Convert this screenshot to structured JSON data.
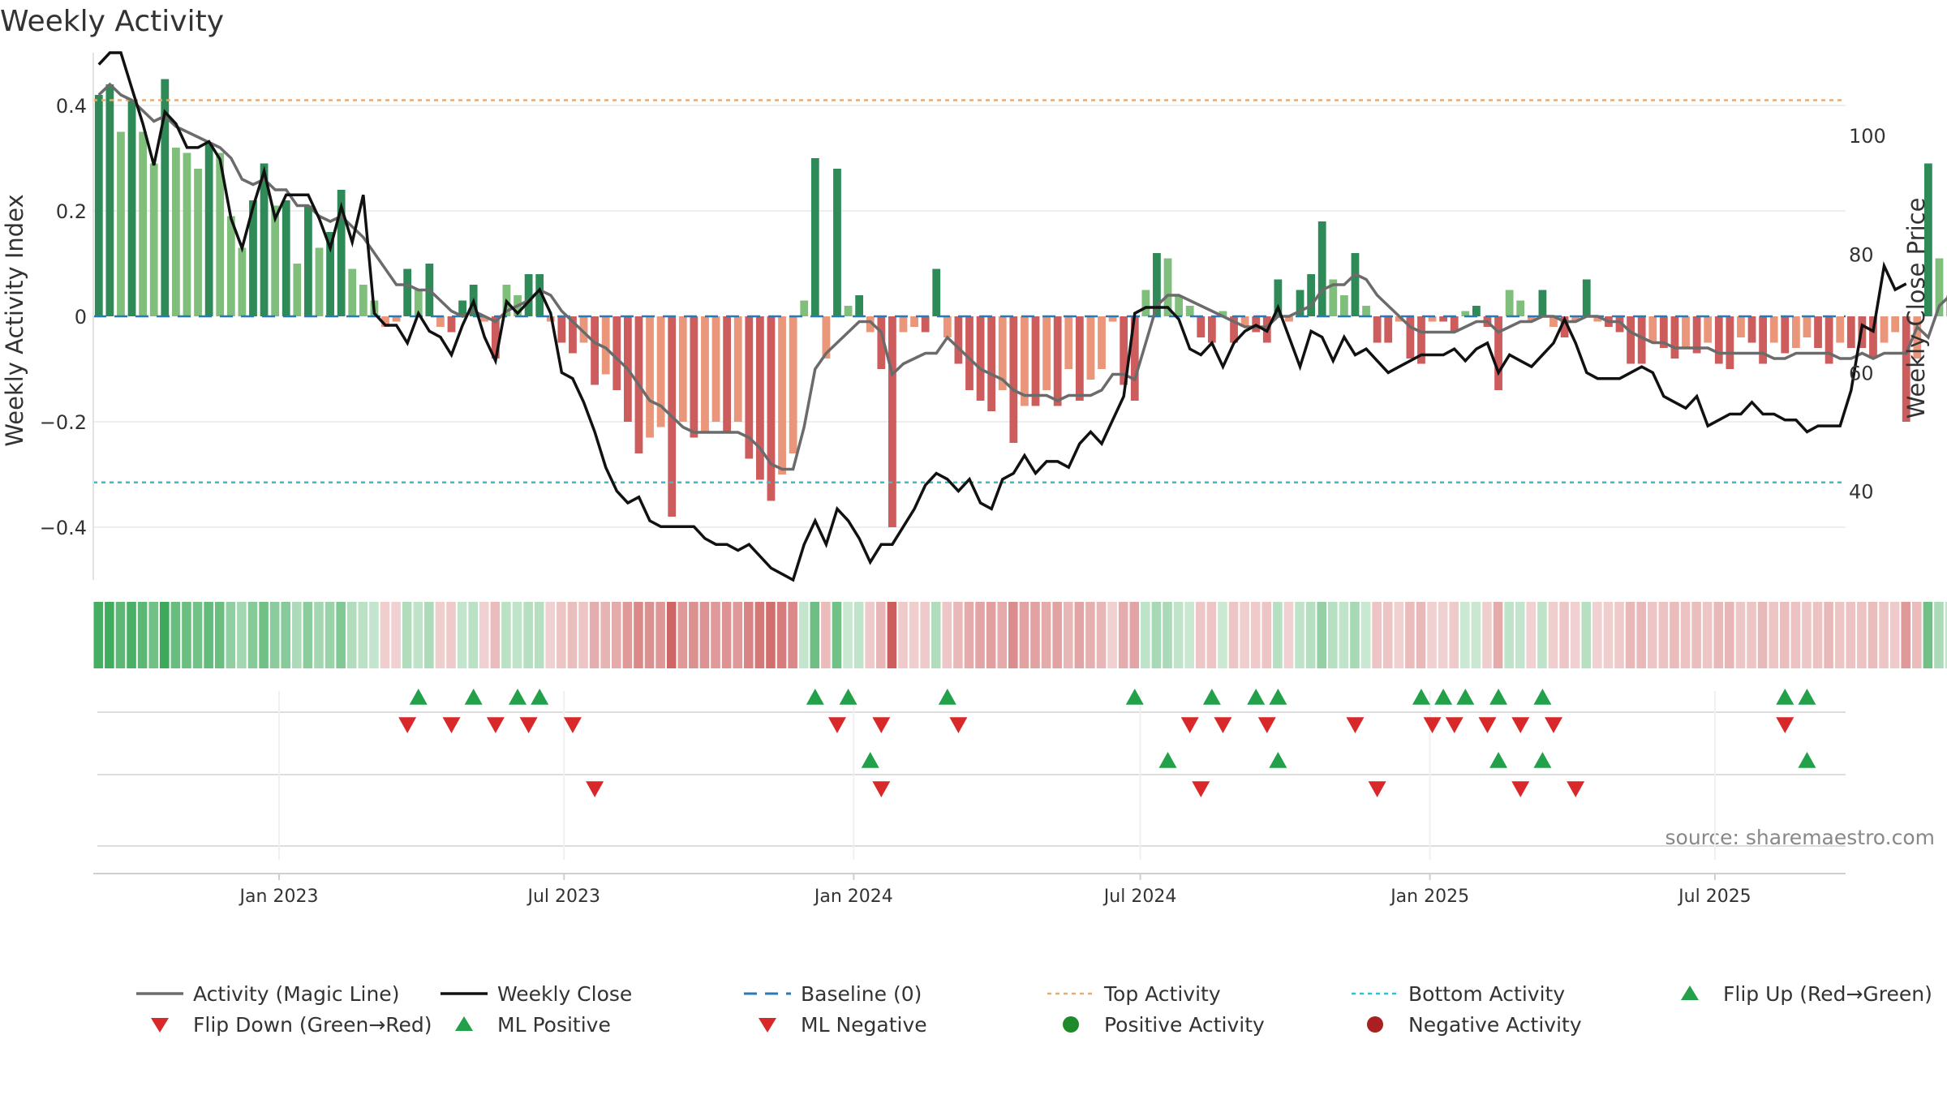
{
  "chart_data": {
    "type": "bar",
    "title": "Weekly Activity",
    "ylabel_left": "Weekly Activity Index",
    "ylabel_right": "Weekly Close Price",
    "source": "source: sharemaestro.com",
    "x_range": [
      "2022-09-05",
      "2025-09-22"
    ],
    "x_ticks": [
      {
        "date": "2023-01-01",
        "label": "Jan 2023"
      },
      {
        "date": "2023-07-01",
        "label": "Jul 2023"
      },
      {
        "date": "2024-01-01",
        "label": "Jan 2024"
      },
      {
        "date": "2024-07-01",
        "label": "Jul 2024"
      },
      {
        "date": "2025-01-01",
        "label": "Jan 2025"
      },
      {
        "date": "2025-07-01",
        "label": "Jul 2025"
      }
    ],
    "left_axis": {
      "ylim": [
        -0.5,
        0.5
      ],
      "ticks": [
        0.4,
        0.2,
        0,
        -0.2,
        -0.4
      ],
      "tick_labels": [
        "0.4",
        "0.2",
        "0",
        "−0.2",
        "−0.4"
      ]
    },
    "right_axis": {
      "ylim": [
        25,
        114
      ],
      "ticks": [
        100,
        80,
        60,
        40
      ],
      "tick_labels": [
        "100",
        "80",
        "60",
        "40"
      ]
    },
    "top_activity": 0.41,
    "bottom_activity": -0.315,
    "baseline": 0,
    "weeks_start": "2022-09-05",
    "activity": [
      0.42,
      0.44,
      0.35,
      0.41,
      0.35,
      0.29,
      0.45,
      0.32,
      0.31,
      0.28,
      0.33,
      0.31,
      0.19,
      0.13,
      0.22,
      0.29,
      0.21,
      0.22,
      0.1,
      0.21,
      0.13,
      0.16,
      0.24,
      0.09,
      0.06,
      0.03,
      -0.02,
      -0.01,
      0.09,
      0.05,
      0.1,
      -0.02,
      -0.03,
      0.03,
      0.06,
      -0.01,
      -0.08,
      0.06,
      0.04,
      0.08,
      0.08,
      -0.01,
      -0.05,
      -0.07,
      -0.05,
      -0.13,
      -0.11,
      -0.14,
      -0.2,
      -0.26,
      -0.23,
      -0.21,
      -0.38,
      -0.2,
      -0.23,
      -0.22,
      -0.2,
      -0.22,
      -0.2,
      -0.27,
      -0.31,
      -0.35,
      -0.3,
      -0.26,
      0.03,
      0.3,
      -0.08,
      0.28,
      0.02,
      0.04,
      -0.03,
      -0.1,
      -0.4,
      -0.03,
      -0.02,
      -0.03,
      0.09,
      -0.04,
      -0.09,
      -0.14,
      -0.16,
      -0.18,
      -0.14,
      -0.24,
      -0.17,
      -0.17,
      -0.14,
      -0.17,
      -0.1,
      -0.16,
      -0.12,
      -0.1,
      -0.01,
      -0.13,
      -0.16,
      0.05,
      0.12,
      0.11,
      0.04,
      0.02,
      -0.04,
      -0.05,
      0.01,
      -0.05,
      -0.02,
      -0.03,
      -0.05,
      0.07,
      -0.01,
      0.05,
      0.08,
      0.18,
      0.07,
      0.04,
      0.12,
      0.02,
      -0.05,
      -0.05,
      -0.01,
      -0.08,
      -0.09,
      -0.01,
      -0.01,
      -0.03,
      0.01,
      0.02,
      -0.02,
      -0.14,
      0.05,
      0.03,
      -0.01,
      0.05,
      -0.02,
      -0.04,
      -0.01,
      0.07,
      -0.01,
      -0.02,
      -0.03,
      -0.09,
      -0.09,
      -0.05,
      -0.06,
      -0.08,
      -0.06,
      -0.07,
      -0.05,
      -0.09,
      -0.1,
      -0.04,
      -0.05,
      -0.09,
      -0.05,
      -0.07,
      -0.06,
      -0.04,
      -0.06,
      -0.09,
      -0.05,
      -0.06,
      -0.06,
      -0.08,
      -0.05,
      -0.03,
      -0.2,
      -0.08,
      0.29,
      0.11,
      0.04
    ],
    "magic_line": [
      0.42,
      0.44,
      0.42,
      0.41,
      0.39,
      0.37,
      0.38,
      0.36,
      0.35,
      0.34,
      0.33,
      0.32,
      0.3,
      0.26,
      0.25,
      0.26,
      0.24,
      0.24,
      0.21,
      0.21,
      0.19,
      0.18,
      0.19,
      0.17,
      0.15,
      0.12,
      0.09,
      0.06,
      0.06,
      0.05,
      0.05,
      0.03,
      0.01,
      0.0,
      0.01,
      0.0,
      -0.01,
      0.01,
      0.02,
      0.03,
      0.05,
      0.04,
      0.01,
      -0.01,
      -0.03,
      -0.05,
      -0.06,
      -0.08,
      -0.1,
      -0.13,
      -0.16,
      -0.17,
      -0.19,
      -0.21,
      -0.22,
      -0.22,
      -0.22,
      -0.22,
      -0.22,
      -0.23,
      -0.25,
      -0.28,
      -0.29,
      -0.29,
      -0.21,
      -0.1,
      -0.07,
      -0.05,
      -0.03,
      -0.01,
      -0.01,
      -0.03,
      -0.11,
      -0.09,
      -0.08,
      -0.07,
      -0.07,
      -0.04,
      -0.06,
      -0.08,
      -0.1,
      -0.11,
      -0.12,
      -0.14,
      -0.15,
      -0.15,
      -0.15,
      -0.16,
      -0.15,
      -0.15,
      -0.15,
      -0.14,
      -0.11,
      -0.11,
      -0.12,
      -0.05,
      0.02,
      0.04,
      0.04,
      0.03,
      0.02,
      0.01,
      0.0,
      -0.01,
      -0.02,
      -0.02,
      -0.02,
      0.0,
      0.0,
      0.01,
      0.02,
      0.05,
      0.06,
      0.06,
      0.08,
      0.07,
      0.04,
      0.02,
      0.0,
      -0.02,
      -0.03,
      -0.03,
      -0.03,
      -0.03,
      -0.02,
      -0.01,
      -0.01,
      -0.03,
      -0.02,
      -0.01,
      -0.01,
      0.0,
      0.0,
      -0.01,
      -0.01,
      0.0,
      0.0,
      -0.01,
      -0.01,
      -0.03,
      -0.04,
      -0.05,
      -0.05,
      -0.06,
      -0.06,
      -0.06,
      -0.06,
      -0.07,
      -0.07,
      -0.07,
      -0.07,
      -0.07,
      -0.08,
      -0.08,
      -0.07,
      -0.07,
      -0.07,
      -0.07,
      -0.08,
      -0.08,
      -0.07,
      -0.08,
      -0.07,
      -0.07,
      -0.07,
      -0.02,
      -0.04,
      0.02,
      0.04,
      0.05
    ],
    "weekly_close": [
      112,
      114,
      114,
      108,
      102,
      95,
      104,
      102,
      98,
      98,
      99,
      96,
      86,
      81,
      88,
      94,
      86,
      90,
      90,
      90,
      86,
      81,
      88,
      82,
      90,
      70,
      68,
      68,
      65,
      70,
      67,
      66,
      63,
      68,
      72,
      66,
      62,
      72,
      70,
      72,
      74,
      70,
      60,
      59,
      55,
      50,
      44,
      40,
      38,
      39,
      35,
      34,
      34,
      34,
      34,
      32,
      31,
      31,
      30,
      31,
      29,
      27,
      26,
      25,
      31,
      35,
      31,
      37,
      35,
      32,
      28,
      31,
      31,
      34,
      37,
      41,
      43,
      42,
      40,
      42,
      38,
      37,
      42,
      43,
      46,
      43,
      45,
      45,
      44,
      48,
      50,
      48,
      52,
      56,
      70,
      71,
      71,
      71,
      69,
      64,
      63,
      65,
      61,
      65,
      67,
      68,
      67,
      71,
      66,
      61,
      67,
      66,
      62,
      66,
      63,
      64,
      62,
      60,
      61,
      62,
      63,
      63,
      63,
      64,
      62,
      64,
      65,
      60,
      63,
      62,
      61,
      63,
      65,
      69,
      65,
      60,
      59,
      59,
      59,
      60,
      61,
      60,
      56,
      55,
      54,
      56,
      51,
      52,
      53,
      53,
      55,
      53,
      53,
      52,
      52,
      50,
      51,
      51,
      51,
      57,
      68,
      67,
      78,
      74,
      75
    ],
    "flip_up_weeks": [
      29,
      34,
      38,
      40,
      65,
      68,
      77,
      94,
      101,
      105,
      107,
      120,
      122,
      124,
      127,
      131,
      153,
      155
    ],
    "flip_down_weeks": [
      28,
      32,
      36,
      39,
      43,
      67,
      71,
      78,
      99,
      102,
      106,
      114,
      121,
      123,
      126,
      129,
      132,
      153
    ],
    "ml_positive_weeks": [
      70,
      97,
      107,
      127,
      131,
      155
    ],
    "ml_negative_weeks": [
      45,
      71,
      100,
      116,
      129,
      134
    ]
  },
  "legend": [
    {
      "label": "Activity (Magic Line)",
      "kind": "line",
      "color": "#6b6b6b"
    },
    {
      "label": "Weekly Close",
      "kind": "line",
      "color": "#111111"
    },
    {
      "label": "Baseline (0)",
      "kind": "dash",
      "color": "#2a78b5"
    },
    {
      "label": "Top Activity",
      "kind": "dot",
      "color": "#f0a868"
    },
    {
      "label": "Bottom Activity",
      "kind": "dot",
      "color": "#33c0d0"
    },
    {
      "label": "Flip Up (Red→Green)",
      "kind": "up",
      "color": "#22a04a"
    },
    {
      "label": "Flip Down (Green→Red)",
      "kind": "down",
      "color": "#d9282a"
    },
    {
      "label": "ML Positive",
      "kind": "up",
      "color": "#22a04a"
    },
    {
      "label": "ML Negative",
      "kind": "down",
      "color": "#d9282a"
    },
    {
      "label": "Positive Activity",
      "kind": "circle",
      "color": "#1f8a2a"
    },
    {
      "label": "Negative Activity",
      "kind": "circle",
      "color": "#a82020"
    }
  ],
  "colors": {
    "pos_strong": "#2e8b57",
    "pos_light": "#7fbf7b",
    "neg_strong": "#cd5c5c",
    "neg_light": "#e9967a",
    "magic_line": "#6b6b6b",
    "close": "#111111",
    "baseline": "#2a78b5",
    "top_line": "#f0a868",
    "bottom_line": "#33c0d0",
    "up": "#22a04a",
    "down": "#d9282a"
  }
}
